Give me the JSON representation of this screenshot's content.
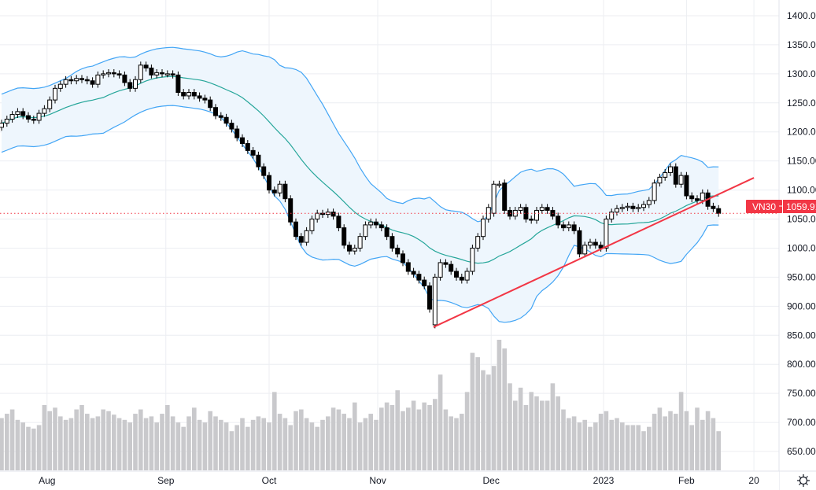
{
  "chart_data": {
    "type": "candlestick",
    "symbol": "VN30",
    "last_price_label": "1059.91",
    "y_ticks": [
      "1400.00",
      "1350.00",
      "1300.00",
      "1250.00",
      "1200.00",
      "1150.00",
      "1100.00",
      "1050.00",
      "1000.00",
      "950.00",
      "900.00",
      "850.00",
      "800.00",
      "750.00",
      "700.00",
      "650.00"
    ],
    "ylim": [
      650,
      1400
    ],
    "x_ticks": [
      {
        "label": "Aug",
        "index": 8.5
      },
      {
        "label": "Sep",
        "index": 30.7
      },
      {
        "label": "Oct",
        "index": 50
      },
      {
        "label": "Nov",
        "index": 70.3
      },
      {
        "label": "Dec",
        "index": 91.5
      },
      {
        "label": "2023",
        "index": 112.5
      },
      {
        "label": "Feb",
        "index": 128
      },
      {
        "label": "20",
        "index": 140.6
      }
    ],
    "last_price": 1059.91,
    "open": [
      1208,
      1215,
      1222,
      1230,
      1235,
      1228,
      1222,
      1220,
      1232,
      1240,
      1255,
      1275,
      1282,
      1290,
      1288,
      1292,
      1290,
      1288,
      1282,
      1298,
      1300,
      1302,
      1300,
      1298,
      1285,
      1275,
      1290,
      1315,
      1310,
      1298,
      1302,
      1300,
      1300,
      1298,
      1268,
      1262,
      1268,
      1262,
      1258,
      1255,
      1242,
      1228,
      1225,
      1215,
      1205,
      1190,
      1180,
      1168,
      1160,
      1140,
      1125,
      1100,
      1095,
      1110,
      1085,
      1045,
      1020,
      1010,
      1030,
      1050,
      1060,
      1058,
      1062,
      1055,
      1035,
      1005,
      995,
      1000,
      1020,
      1040,
      1045,
      1040,
      1035,
      1020,
      1000,
      990,
      975,
      960,
      955,
      945,
      935,
      868,
      950,
      975,
      972,
      960,
      950,
      945,
      960,
      1000,
      1020,
      1050,
      1060,
      1110,
      1112,
      1065,
      1055,
      1065,
      1070,
      1050,
      1048,
      1065,
      1070,
      1065,
      1055,
      1040,
      1035,
      1040,
      1030,
      990,
      1005,
      1010,
      1005,
      1000,
      1050,
      1062,
      1068,
      1070,
      1072,
      1068,
      1070,
      1075,
      1082,
      1112,
      1122,
      1130,
      1140,
      1110,
      1125,
      1090,
      1085,
      1082,
      1095,
      1072,
      1068
    ],
    "close": [
      1215,
      1222,
      1230,
      1235,
      1228,
      1222,
      1220,
      1232,
      1240,
      1255,
      1275,
      1282,
      1290,
      1288,
      1292,
      1290,
      1288,
      1282,
      1298,
      1300,
      1302,
      1300,
      1298,
      1285,
      1275,
      1290,
      1315,
      1310,
      1298,
      1302,
      1300,
      1300,
      1298,
      1268,
      1262,
      1268,
      1262,
      1258,
      1255,
      1242,
      1228,
      1225,
      1215,
      1205,
      1190,
      1180,
      1168,
      1160,
      1140,
      1125,
      1100,
      1095,
      1110,
      1085,
      1045,
      1020,
      1010,
      1030,
      1050,
      1060,
      1058,
      1062,
      1055,
      1035,
      1005,
      995,
      1000,
      1020,
      1040,
      1045,
      1040,
      1035,
      1020,
      1000,
      990,
      975,
      960,
      955,
      945,
      935,
      895,
      950,
      975,
      972,
      960,
      950,
      945,
      960,
      1000,
      1020,
      1050,
      1070,
      1110,
      1110,
      1065,
      1055,
      1065,
      1070,
      1050,
      1048,
      1065,
      1070,
      1065,
      1055,
      1040,
      1035,
      1040,
      1030,
      990,
      1005,
      1010,
      1005,
      1000,
      1050,
      1062,
      1068,
      1070,
      1072,
      1068,
      1070,
      1075,
      1082,
      1112,
      1122,
      1130,
      1140,
      1110,
      1125,
      1090,
      1085,
      1082,
      1095,
      1072,
      1068,
      1059.91
    ],
    "volume_relative": [
      60,
      65,
      70,
      58,
      55,
      50,
      48,
      52,
      75,
      68,
      72,
      62,
      58,
      60,
      70,
      75,
      65,
      60,
      62,
      70,
      68,
      64,
      60,
      58,
      55,
      65,
      70,
      60,
      62,
      55,
      65,
      75,
      62,
      55,
      50,
      62,
      72,
      58,
      55,
      68,
      62,
      58,
      55,
      45,
      52,
      60,
      50,
      58,
      62,
      60,
      55,
      90,
      65,
      60,
      52,
      68,
      70,
      60,
      55,
      50,
      58,
      62,
      72,
      70,
      65,
      60,
      78,
      55,
      60,
      65,
      58,
      72,
      78,
      75,
      92,
      68,
      72,
      80,
      70,
      78,
      75,
      82,
      110,
      70,
      62,
      60,
      65,
      90,
      135,
      130,
      115,
      110,
      120,
      150,
      140,
      100,
      80,
      95,
      75,
      90,
      85,
      80,
      80,
      100,
      85,
      70,
      60,
      62,
      55,
      58,
      50,
      55,
      65,
      68,
      58,
      60,
      55,
      52,
      52,
      52,
      45,
      50,
      65,
      72,
      62,
      68,
      65,
      90,
      68,
      52,
      72,
      58,
      68,
      60,
      45
    ],
    "indicators": {
      "bollinger": {
        "period": 20,
        "stddev": 2
      }
    },
    "trendline": {
      "from": {
        "index": 80.7,
        "price": 864
      },
      "to": {
        "index": 140.6,
        "price": 1121
      }
    },
    "colors": {
      "band": "#42a5f5",
      "basis": "#26a69a",
      "band_fill": "#eef6fd",
      "trendline": "#f23645",
      "volume": "#c9c9cc",
      "label_bg": "#f23645"
    }
  }
}
